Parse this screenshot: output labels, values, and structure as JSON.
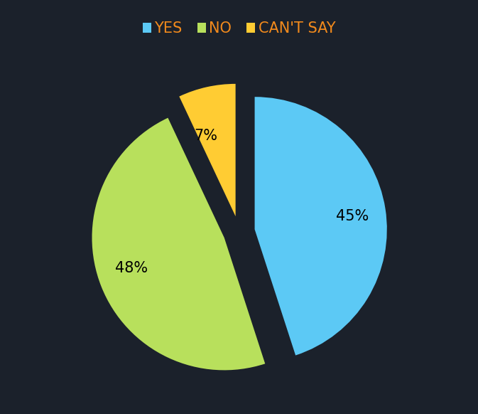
{
  "chart_data": {
    "type": "pie",
    "categories": [
      "YES",
      "NO",
      "CAN'T SAY"
    ],
    "values": [
      45,
      48,
      7
    ],
    "value_labels": [
      "45%",
      "48%",
      "7%"
    ],
    "colors": [
      "#5cc9f5",
      "#b8e05c",
      "#ffcc33"
    ],
    "data_labels": true,
    "legend": "upper center"
  }
}
